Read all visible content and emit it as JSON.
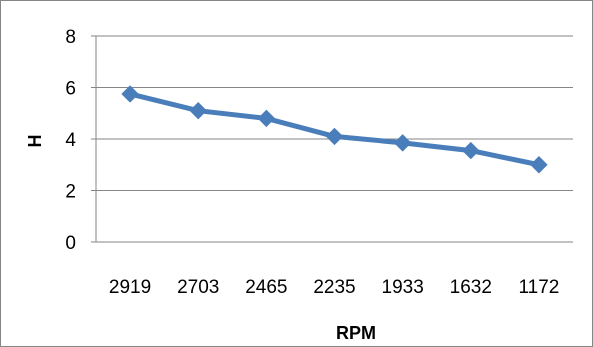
{
  "chart_data": {
    "type": "line",
    "title": "",
    "xlabel": "RPM",
    "ylabel": "H",
    "categories": [
      "2919",
      "2703",
      "2465",
      "2235",
      "1933",
      "1632",
      "1172"
    ],
    "series": [
      {
        "values": [
          5.75,
          5.1,
          4.8,
          4.1,
          3.85,
          3.55,
          3.0
        ],
        "color": "#4a7ebb",
        "marker": "diamond"
      }
    ],
    "ylim": [
      0,
      8
    ],
    "yticks": [
      "0",
      "2",
      "4",
      "6",
      "8"
    ],
    "grid": true,
    "grid_color": "#868686",
    "legend": "none"
  }
}
